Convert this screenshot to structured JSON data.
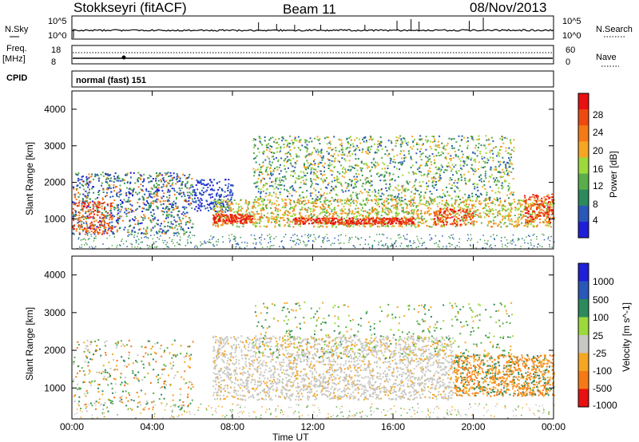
{
  "header": {
    "station": "Stokkseyri (fitACF)",
    "beam": "Beam 11",
    "date": "08/Nov/2013"
  },
  "noise_panel": {
    "left_label": "N.Sky",
    "left_ticks": [
      "10^5",
      "10^0"
    ],
    "right_ticks": [
      "10^5",
      "10^0"
    ],
    "right_label": "N.Search"
  },
  "freq_panel": {
    "left_label_1": "Freq.",
    "left_label_2": "[MHz]",
    "left_ticks": [
      "18",
      "8"
    ],
    "right_ticks": [
      "60",
      "0"
    ],
    "right_label": "Nave"
  },
  "cpid": {
    "label": "CPID",
    "value": "normal (fast) 151"
  },
  "colors": {
    "scale": [
      "#1f1fd9",
      "#2a58b8",
      "#2d8a5c",
      "#5aae4a",
      "#9cd93c",
      "#f5a623",
      "#f57a16",
      "#ee4a10",
      "#e81010"
    ],
    "ground_scatter": "#c7c7c3"
  },
  "chart_data": [
    {
      "type": "heatmap",
      "quantity": "power",
      "xlabel": "",
      "ylabel": "Slant Range [km]",
      "colorbar_label": "Power [dB]",
      "colorbar_ticks": [
        "28",
        "24",
        "20",
        "16",
        "12",
        "8",
        "4"
      ],
      "colorbar_range": [
        0,
        32
      ],
      "xlim": [
        "00:00",
        "24:00"
      ],
      "ylim": [
        180,
        4500
      ],
      "yticks": [
        "4000",
        "3000",
        "2000",
        "1000"
      ],
      "features": [
        {
          "time": [
            "00:00",
            "06:00"
          ],
          "range_km": [
            600,
            2300
          ],
          "power_db": [
            4,
            28
          ]
        },
        {
          "time": [
            "07:00",
            "24:00"
          ],
          "range_km": [
            800,
            1500
          ],
          "power_db": [
            16,
            28
          ]
        },
        {
          "time": [
            "09:00",
            "22:00"
          ],
          "range_km": [
            1500,
            3300
          ],
          "power_db": [
            4,
            16
          ]
        }
      ]
    },
    {
      "type": "heatmap",
      "quantity": "velocity",
      "xlabel": "Time UT",
      "ylabel": "Slant Range [km]",
      "colorbar_label": "Velocity [m s^-1]",
      "colorbar_ticks": [
        "1000",
        "500",
        "100",
        "25",
        "-25",
        "-100",
        "-500",
        "-1000"
      ],
      "xlim": [
        "00:00",
        "24:00"
      ],
      "ylim": [
        180,
        4500
      ],
      "xticks": [
        "00:00",
        "04:00",
        "08:00",
        "12:00",
        "16:00",
        "20:00",
        "00:00"
      ],
      "yticks": [
        "4000",
        "3000",
        "2000",
        "1000"
      ],
      "features": [
        {
          "time": [
            "07:00",
            "19:00"
          ],
          "range_km": [
            700,
            2400
          ],
          "velocity_ms": [
            -25,
            25
          ],
          "ground_scatter": true
        },
        {
          "time": [
            "19:00",
            "24:00"
          ],
          "range_km": [
            800,
            1900
          ],
          "velocity_ms": [
            -500,
            -100
          ]
        }
      ]
    }
  ]
}
